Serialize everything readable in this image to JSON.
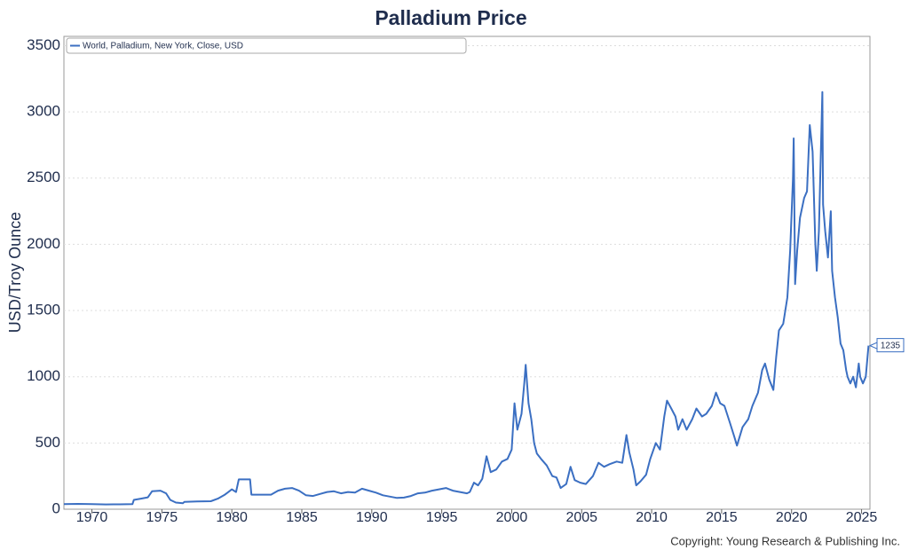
{
  "chart_data": {
    "type": "line",
    "title": "Palladium Price",
    "y_label": "USD/Troy Ounce",
    "source": "Copyright: Young Research & Publishing Inc.",
    "x": [
      1968.0,
      1969,
      1970,
      1971,
      1972,
      1972.9,
      1973.0,
      1973.5,
      1974.0,
      1974.3,
      1974.9,
      1975.3,
      1975.6,
      1976.0,
      1976.5,
      1976.6,
      1977.5,
      1978.5,
      1979.0,
      1979.5,
      1980.0,
      1980.3,
      1980.5,
      1981.3,
      1981.4,
      1982.0,
      1982.8,
      1983.3,
      1983.8,
      1984.3,
      1984.8,
      1985.3,
      1985.8,
      1986.3,
      1986.8,
      1987.3,
      1987.8,
      1988.3,
      1988.8,
      1989.3,
      1989.8,
      1990.3,
      1990.8,
      1991.3,
      1991.8,
      1992.3,
      1992.8,
      1993.3,
      1993.8,
      1994.3,
      1994.8,
      1995.3,
      1995.8,
      1996.3,
      1996.8,
      1997.0,
      1997.3,
      1997.6,
      1997.9,
      1998.2,
      1998.5,
      1998.9,
      1999.3,
      1999.7,
      2000.0,
      2000.2,
      2000.4,
      2000.7,
      2000.9,
      2001.0,
      2001.2,
      2001.4,
      2001.6,
      2001.8,
      2002.1,
      2002.5,
      2002.9,
      2003.2,
      2003.5,
      2003.9,
      2004.2,
      2004.5,
      2004.9,
      2005.3,
      2005.8,
      2006.2,
      2006.6,
      2007.0,
      2007.5,
      2007.9,
      2008.2,
      2008.4,
      2008.7,
      2008.9,
      2009.2,
      2009.6,
      2009.9,
      2010.3,
      2010.6,
      2010.9,
      2011.1,
      2011.4,
      2011.7,
      2011.9,
      2012.2,
      2012.5,
      2012.9,
      2013.2,
      2013.6,
      2013.9,
      2014.3,
      2014.6,
      2014.9,
      2015.2,
      2015.6,
      2015.9,
      2016.1,
      2016.5,
      2016.9,
      2017.2,
      2017.6,
      2017.9,
      2018.1,
      2018.4,
      2018.7,
      2018.9,
      2019.1,
      2019.4,
      2019.7,
      2019.9,
      2020.1,
      2020.15,
      2020.25,
      2020.4,
      2020.6,
      2020.9,
      2021.1,
      2021.3,
      2021.5,
      2021.7,
      2021.8,
      2021.95,
      2022.2,
      2022.25,
      2022.4,
      2022.6,
      2022.8,
      2022.9,
      2023.1,
      2023.3,
      2023.5,
      2023.7,
      2023.9,
      2024.0,
      2024.2,
      2024.4,
      2024.6,
      2024.8,
      2024.9,
      2025.1,
      2025.3,
      2025.5
    ],
    "series": [
      {
        "name": "World, Palladium, New York, Close, USD",
        "color": "#3b6fc2",
        "values": [
          38,
          40,
          38,
          36,
          37,
          38,
          70,
          80,
          90,
          135,
          140,
          120,
          70,
          50,
          45,
          55,
          58,
          60,
          80,
          110,
          150,
          130,
          225,
          225,
          110,
          110,
          110,
          140,
          155,
          160,
          140,
          105,
          100,
          115,
          130,
          135,
          120,
          130,
          125,
          155,
          140,
          125,
          105,
          95,
          85,
          88,
          100,
          120,
          125,
          140,
          150,
          160,
          140,
          130,
          120,
          130,
          200,
          180,
          230,
          400,
          280,
          300,
          360,
          380,
          450,
          800,
          600,
          720,
          950,
          1090,
          800,
          680,
          500,
          420,
          380,
          330,
          250,
          240,
          160,
          190,
          320,
          220,
          200,
          190,
          250,
          350,
          320,
          340,
          360,
          350,
          560,
          430,
          300,
          180,
          210,
          260,
          380,
          500,
          450,
          700,
          820,
          760,
          700,
          600,
          680,
          600,
          680,
          760,
          700,
          720,
          780,
          880,
          800,
          780,
          650,
          550,
          480,
          620,
          680,
          780,
          880,
          1050,
          1100,
          980,
          900,
          1150,
          1350,
          1400,
          1600,
          1950,
          2500,
          2800,
          1700,
          1950,
          2200,
          2350,
          2400,
          2900,
          2700,
          2000,
          1800,
          2100,
          3150,
          2300,
          2100,
          1900,
          2250,
          1800,
          1600,
          1450,
          1250,
          1200,
          1050,
          1000,
          950,
          1000,
          920,
          1100,
          1000,
          950,
          1000,
          1235
        ]
      }
    ],
    "last_value_label": true,
    "xlim": [
      1968,
      2025.6
    ],
    "xticks": [
      1970,
      1975,
      1980,
      1985,
      1990,
      1995,
      2000,
      2005,
      2010,
      2015,
      2020,
      2025
    ],
    "ylim": [
      0,
      3570
    ],
    "yticks": [
      0,
      500,
      1000,
      1500,
      2000,
      2500,
      3000,
      3500
    ],
    "grid": true
  }
}
